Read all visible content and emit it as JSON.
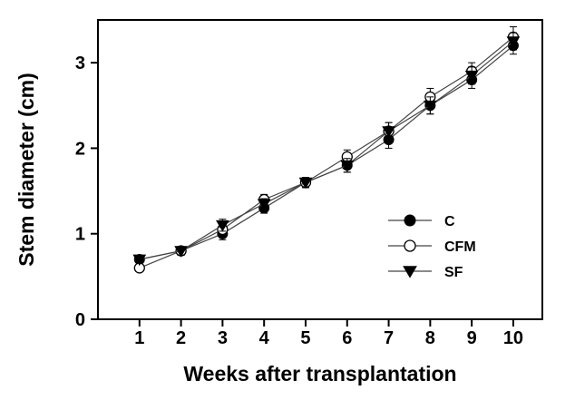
{
  "chart_data": {
    "type": "line",
    "title": "",
    "xlabel": "Weeks after transplantation",
    "ylabel": "Stem diameter (cm)",
    "x": [
      1,
      2,
      3,
      4,
      5,
      6,
      7,
      8,
      9,
      10
    ],
    "xlim": [
      0,
      10.7
    ],
    "ylim": [
      0,
      3.5
    ],
    "xticks": [
      "1",
      "2",
      "3",
      "4",
      "5",
      "6",
      "7",
      "8",
      "9",
      "10"
    ],
    "yticks": [
      0,
      1,
      2,
      3
    ],
    "ytick_labels": [
      "0",
      "1",
      "2",
      "3"
    ],
    "grid": false,
    "legend_position": "center-right",
    "series": [
      {
        "name": "C",
        "marker": "filled-circle",
        "values": [
          0.7,
          0.8,
          1.0,
          1.3,
          1.6,
          1.8,
          2.1,
          2.5,
          2.8,
          3.2
        ],
        "errors": [
          0.03,
          0.05,
          0.07,
          0.06,
          0.06,
          0.08,
          0.1,
          0.1,
          0.1,
          0.1
        ]
      },
      {
        "name": "CFM",
        "marker": "open-circle",
        "values": [
          0.6,
          0.8,
          1.05,
          1.4,
          1.6,
          1.9,
          2.2,
          2.6,
          2.9,
          3.3
        ],
        "errors": [
          0.03,
          0.05,
          0.07,
          0.06,
          0.06,
          0.08,
          0.1,
          0.1,
          0.1,
          0.12
        ]
      },
      {
        "name": "SF",
        "marker": "filled-triangle-down",
        "values": [
          0.7,
          0.8,
          1.1,
          1.35,
          1.6,
          1.8,
          2.2,
          2.5,
          2.85,
          3.25
        ],
        "errors": [
          0.03,
          0.05,
          0.07,
          0.06,
          0.06,
          0.08,
          0.1,
          0.1,
          0.1,
          0.1
        ]
      }
    ]
  }
}
